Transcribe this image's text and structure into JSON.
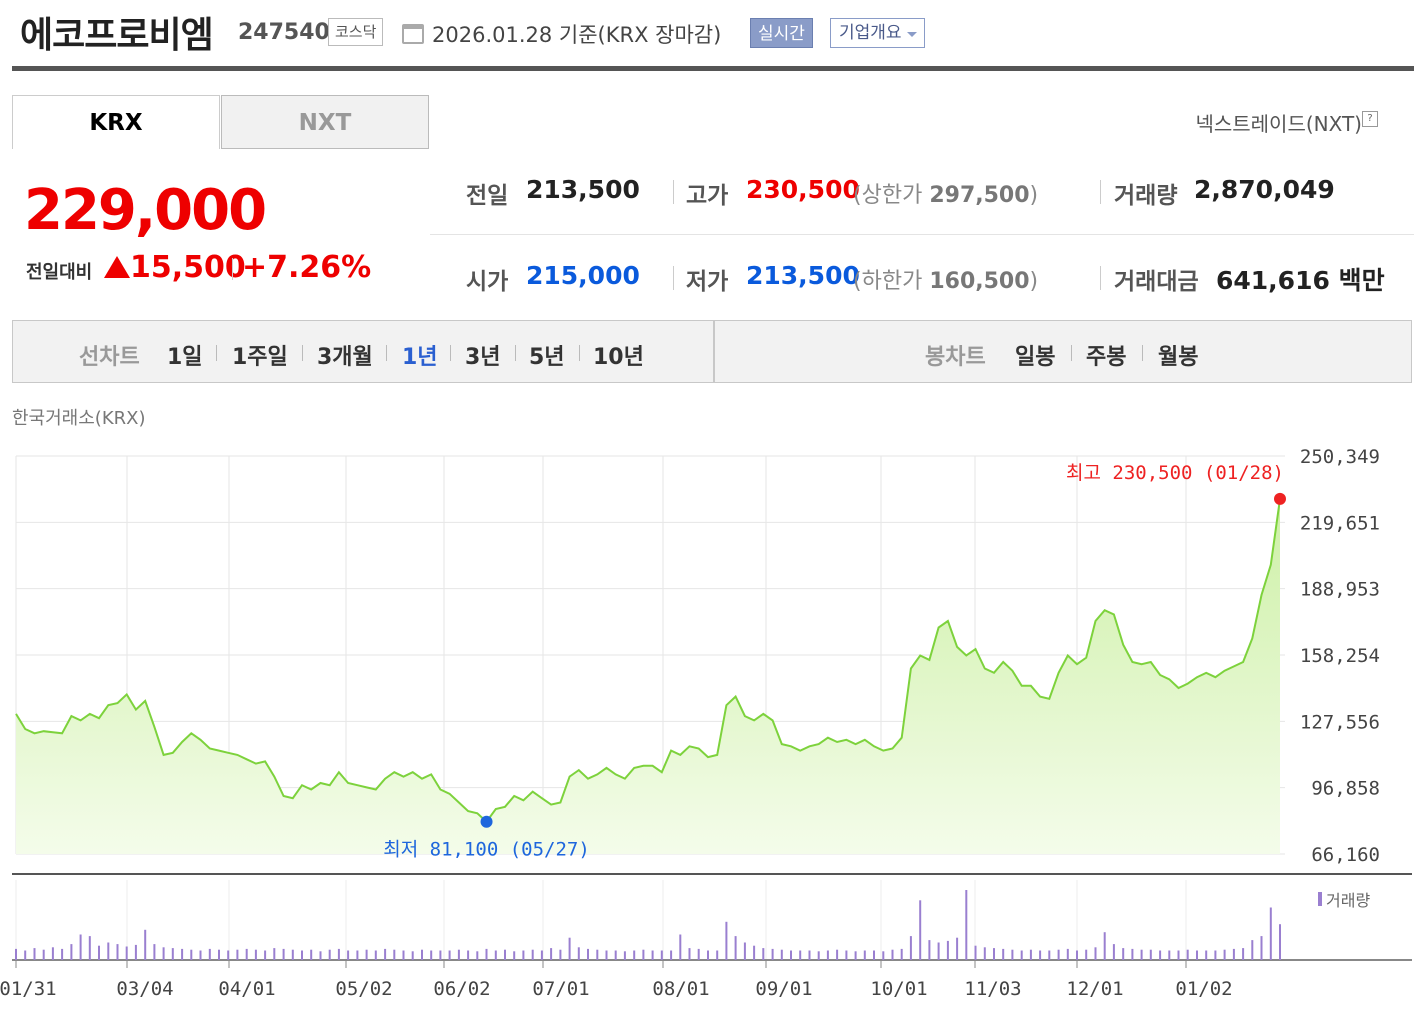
{
  "header": {
    "name": "에코프로비엠",
    "code": "247540",
    "market": "코스닥",
    "date": "2026.01.28 기준(KRX 장마감)",
    "realtime_label": "실시간",
    "overview_label": "기업개요"
  },
  "tabs": [
    {
      "label": "KRX"
    },
    {
      "label": "NXT"
    }
  ],
  "nxt_link": "넥스트레이드(NXT)",
  "price": {
    "current": "229,000",
    "change_label": "전일대비",
    "change": "15,500",
    "change_pct": "+7.26%"
  },
  "stats": {
    "prev_label": "전일",
    "prev": "213,500",
    "high_label": "고가",
    "high": "230,500",
    "upper_label": "상한가",
    "upper": "297,500",
    "volume_label": "거래량",
    "volume": "2,870,049",
    "open_label": "시가",
    "open": "215,000",
    "low_label": "저가",
    "low": "213,500",
    "lower_label": "하한가",
    "lower": "160,500",
    "amount_label": "거래대금",
    "amount": "641,616",
    "amount_unit": "백만"
  },
  "toolbar": {
    "line_label": "선차트",
    "line_periods": [
      "1일",
      "1주일",
      "3개월",
      "1년",
      "3년",
      "5년",
      "10년"
    ],
    "active_period": "1년",
    "candle_label": "봉차트",
    "candle_periods": [
      "일봉",
      "주봉",
      "월봉"
    ]
  },
  "exchange_label": "한국거래소(KRX)",
  "colors": {
    "up": "#e00000",
    "down": "#0a5adc",
    "line": "#7dd23c",
    "volume": "#9a7fd0"
  },
  "chart_data": {
    "type": "area",
    "title": "",
    "xlabel": "",
    "ylabel": "",
    "ylim": [
      66160,
      250349
    ],
    "y_ticks": [
      "250,349",
      "219,651",
      "188,953",
      "158,254",
      "127,556",
      "96,858",
      "66,160"
    ],
    "x_ticks": [
      "01/31",
      "03/04",
      "04/01",
      "05/02",
      "06/02",
      "07/01",
      "08/01",
      "09/01",
      "10/01",
      "11/03",
      "12/01",
      "01/02"
    ],
    "max_annotation": "최고 230,500 (01/28)",
    "min_annotation": "최저 81,100 (05/27)",
    "volume_legend": "거래량",
    "grid": true,
    "series": [
      {
        "values": [
          131000,
          124000,
          122000,
          123000,
          122500,
          122000,
          130000,
          128000,
          131000,
          129000,
          135000,
          136000,
          140000,
          133000,
          137000,
          125000,
          112000,
          113000,
          118000,
          122000,
          119000,
          115000,
          114000,
          113000,
          112000,
          110000,
          108000,
          109000,
          102000,
          93000,
          92000,
          98000,
          96000,
          99000,
          98000,
          104000,
          99000,
          98000,
          97000,
          96000,
          101000,
          104000,
          102000,
          104000,
          101000,
          103000,
          96000,
          94000,
          90000,
          86000,
          85000,
          81100,
          87000,
          88000,
          93000,
          91000,
          95000,
          92000,
          89000,
          90000,
          102000,
          105000,
          101000,
          103000,
          106000,
          103000,
          101000,
          106000,
          107000,
          107000,
          104000,
          114000,
          112000,
          116000,
          115000,
          111000,
          112000,
          135000,
          139000,
          130000,
          128000,
          131000,
          128000,
          117000,
          116000,
          114000,
          116000,
          117000,
          120000,
          118000,
          119000,
          117000,
          119000,
          116000,
          114000,
          115000,
          120000,
          152000,
          158000,
          156000,
          171000,
          174000,
          162000,
          158000,
          161000,
          152000,
          150000,
          155000,
          151000,
          144000,
          144000,
          139000,
          138000,
          150000,
          158000,
          154000,
          157000,
          174000,
          179000,
          177000,
          163000,
          155000,
          154000,
          155000,
          149000,
          147000,
          143000,
          145000,
          148000,
          150000,
          148000,
          151000,
          153000,
          155000,
          166000,
          186000,
          200000,
          230500
        ]
      }
    ],
    "volume": [
      0.14,
      0.12,
      0.15,
      0.13,
      0.16,
      0.14,
      0.2,
      0.32,
      0.3,
      0.18,
      0.22,
      0.2,
      0.17,
      0.19,
      0.38,
      0.2,
      0.16,
      0.15,
      0.14,
      0.13,
      0.12,
      0.14,
      0.13,
      0.12,
      0.13,
      0.14,
      0.13,
      0.12,
      0.15,
      0.14,
      0.13,
      0.12,
      0.13,
      0.11,
      0.13,
      0.14,
      0.12,
      0.12,
      0.13,
      0.12,
      0.14,
      0.13,
      0.12,
      0.11,
      0.13,
      0.12,
      0.12,
      0.12,
      0.13,
      0.12,
      0.11,
      0.14,
      0.12,
      0.13,
      0.11,
      0.12,
      0.13,
      0.12,
      0.15,
      0.13,
      0.28,
      0.16,
      0.14,
      0.13,
      0.12,
      0.12,
      0.11,
      0.12,
      0.13,
      0.12,
      0.12,
      0.12,
      0.32,
      0.15,
      0.14,
      0.12,
      0.12,
      0.48,
      0.3,
      0.22,
      0.18,
      0.15,
      0.14,
      0.13,
      0.12,
      0.12,
      0.12,
      0.11,
      0.12,
      0.13,
      0.12,
      0.11,
      0.12,
      0.12,
      0.11,
      0.13,
      0.14,
      0.3,
      0.75,
      0.25,
      0.22,
      0.24,
      0.28,
      0.88,
      0.18,
      0.16,
      0.15,
      0.14,
      0.13,
      0.12,
      0.13,
      0.12,
      0.12,
      0.13,
      0.14,
      0.12,
      0.13,
      0.16,
      0.35,
      0.2,
      0.15,
      0.14,
      0.13,
      0.13,
      0.12,
      0.12,
      0.12,
      0.13,
      0.12,
      0.12,
      0.12,
      0.13,
      0.14,
      0.15,
      0.25,
      0.3,
      0.66,
      0.45
    ]
  }
}
